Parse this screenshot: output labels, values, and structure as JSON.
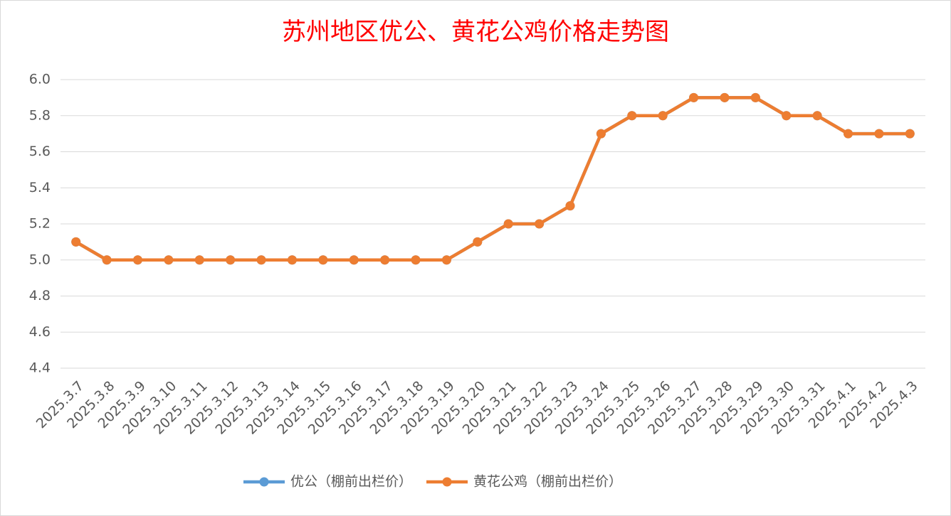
{
  "chart_data": {
    "type": "line",
    "title": "苏州地区优公、黄花公鸡价格走势图",
    "categories": [
      "2025.3.7",
      "2025.3.8",
      "2025.3.9",
      "2025.3.10",
      "2025.3.11",
      "2025.3.12",
      "2025.3.13",
      "2025.3.14",
      "2025.3.15",
      "2025.3.16",
      "2025.3.17",
      "2025.3.18",
      "2025.3.19",
      "2025.3.20",
      "2025.3.21",
      "2025.3.22",
      "2025.3.23",
      "2025.3.24",
      "2025.3.25",
      "2025.3.26",
      "2025.3.27",
      "2025.3.28",
      "2025.3.29",
      "2025.3.30",
      "2025.3.31",
      "2025.4.1",
      "2025.4.2",
      "2025.4.3"
    ],
    "series": [
      {
        "name": "优公（棚前出栏价）",
        "color": "#5b9bd5",
        "values": [
          5.1,
          5,
          5,
          5,
          5,
          5,
          5,
          5,
          5,
          5,
          5,
          5,
          5,
          5.1,
          5.2,
          5.2,
          5.3,
          5.7,
          5.8,
          5.8,
          5.9,
          5.9,
          5.9,
          5.8,
          5.8,
          5.7,
          5.7,
          5.7
        ]
      },
      {
        "name": "黄花公鸡（棚前出栏价）",
        "color": "#ed7d31",
        "values": [
          5.1,
          5,
          5,
          5,
          5,
          5,
          5,
          5,
          5,
          5,
          5,
          5,
          5,
          5.1,
          5.2,
          5.2,
          5.3,
          5.7,
          5.8,
          5.8,
          5.9,
          5.9,
          5.9,
          5.8,
          5.8,
          5.7,
          5.7,
          5.7
        ]
      }
    ],
    "ylim": [
      4.4,
      6.0
    ],
    "yticks": [
      4.4,
      4.6,
      4.8,
      {
        "value": 5,
        "label": "5.0"
      },
      5.2,
      5.4,
      5.6,
      5.8,
      {
        "value": 6,
        "label": "6.0"
      }
    ],
    "grid": true,
    "legend": "bottom"
  }
}
